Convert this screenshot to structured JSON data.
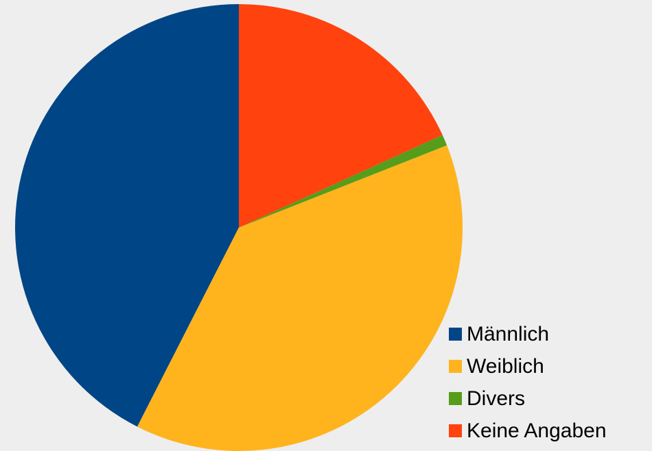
{
  "chart_data": {
    "type": "pie",
    "title": "",
    "legend_position": "bottom-right",
    "start_angle_deg": 0,
    "direction": "counterclockwise",
    "series": [
      {
        "name": "Männlich",
        "value": 42.5,
        "color": "#004586"
      },
      {
        "name": "Weiblich",
        "value": 38.5,
        "color": "#ffb31d"
      },
      {
        "name": "Divers",
        "value": 0.8,
        "color": "#579d1c"
      },
      {
        "name": "Keine Angaben",
        "value": 18.2,
        "color": "#ff420e"
      }
    ]
  }
}
